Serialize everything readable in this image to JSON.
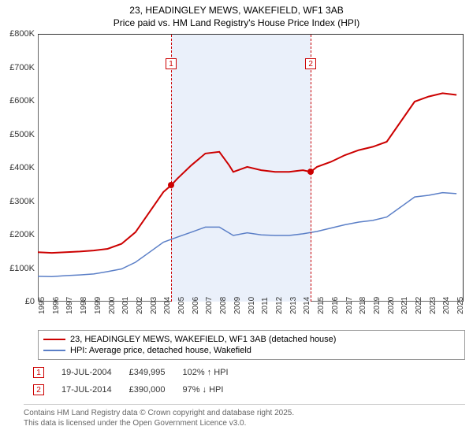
{
  "title_line1": "23, HEADINGLEY MEWS, WAKEFIELD, WF1 3AB",
  "title_line2": "Price paid vs. HM Land Registry's House Price Index (HPI)",
  "chart": {
    "type": "line",
    "x_years": [
      1995,
      1996,
      1997,
      1998,
      1999,
      2000,
      2001,
      2002,
      2003,
      2004,
      2005,
      2006,
      2007,
      2008,
      2009,
      2010,
      2011,
      2012,
      2013,
      2014,
      2015,
      2016,
      2017,
      2018,
      2019,
      2020,
      2021,
      2022,
      2023,
      2024,
      2025
    ],
    "xlim": [
      1995,
      2025.5
    ],
    "ylim": [
      0,
      800000
    ],
    "ytick_step": 100000,
    "ytick_labels": [
      "£0",
      "£100K",
      "£200K",
      "£300K",
      "£400K",
      "£500K",
      "£600K",
      "£700K",
      "£800K"
    ],
    "background_color": "#ffffff",
    "shaded_band": {
      "from": 2004.55,
      "to": 2014.55,
      "color": "#eaf0fa"
    },
    "grid_color": "#cccccc",
    "series": [
      {
        "name": "23, HEADINGLEY MEWS, WAKEFIELD, WF1 3AB (detached house)",
        "color": "#cc0000",
        "line_width": 2,
        "points": [
          [
            1995,
            150000
          ],
          [
            1996,
            148000
          ],
          [
            1997,
            150000
          ],
          [
            1998,
            152000
          ],
          [
            1999,
            155000
          ],
          [
            2000,
            160000
          ],
          [
            2001,
            175000
          ],
          [
            2002,
            210000
          ],
          [
            2003,
            270000
          ],
          [
            2004,
            330000
          ],
          [
            2004.55,
            350000
          ],
          [
            2005,
            370000
          ],
          [
            2006,
            410000
          ],
          [
            2007,
            445000
          ],
          [
            2008,
            450000
          ],
          [
            2008.7,
            410000
          ],
          [
            2009,
            390000
          ],
          [
            2010,
            405000
          ],
          [
            2011,
            395000
          ],
          [
            2012,
            390000
          ],
          [
            2013,
            390000
          ],
          [
            2014,
            395000
          ],
          [
            2014.55,
            390000
          ],
          [
            2015,
            405000
          ],
          [
            2016,
            420000
          ],
          [
            2017,
            440000
          ],
          [
            2018,
            455000
          ],
          [
            2019,
            465000
          ],
          [
            2020,
            480000
          ],
          [
            2021,
            540000
          ],
          [
            2022,
            600000
          ],
          [
            2023,
            615000
          ],
          [
            2024,
            625000
          ],
          [
            2025,
            620000
          ]
        ]
      },
      {
        "name": "HPI: Average price, detached house, Wakefield",
        "color": "#5b7fc7",
        "line_width": 1.5,
        "points": [
          [
            1995,
            78000
          ],
          [
            1996,
            77000
          ],
          [
            1997,
            80000
          ],
          [
            1998,
            82000
          ],
          [
            1999,
            85000
          ],
          [
            2000,
            92000
          ],
          [
            2001,
            100000
          ],
          [
            2002,
            120000
          ],
          [
            2003,
            150000
          ],
          [
            2004,
            180000
          ],
          [
            2005,
            195000
          ],
          [
            2006,
            210000
          ],
          [
            2007,
            225000
          ],
          [
            2008,
            225000
          ],
          [
            2009,
            200000
          ],
          [
            2010,
            208000
          ],
          [
            2011,
            202000
          ],
          [
            2012,
            200000
          ],
          [
            2013,
            200000
          ],
          [
            2014,
            205000
          ],
          [
            2015,
            212000
          ],
          [
            2016,
            222000
          ],
          [
            2017,
            232000
          ],
          [
            2018,
            240000
          ],
          [
            2019,
            245000
          ],
          [
            2020,
            255000
          ],
          [
            2021,
            285000
          ],
          [
            2022,
            315000
          ],
          [
            2023,
            320000
          ],
          [
            2024,
            328000
          ],
          [
            2025,
            325000
          ]
        ]
      }
    ],
    "sale_markers": [
      {
        "n": "1",
        "x": 2004.55,
        "y": 349995,
        "color": "#cc0000"
      },
      {
        "n": "2",
        "x": 2014.55,
        "y": 390000,
        "color": "#cc0000"
      }
    ]
  },
  "legend": {
    "items": [
      {
        "color": "#cc0000",
        "label": "23, HEADINGLEY MEWS, WAKEFIELD, WF1 3AB (detached house)"
      },
      {
        "color": "#5b7fc7",
        "label": "HPI: Average price, detached house, Wakefield"
      }
    ]
  },
  "sales": [
    {
      "n": "1",
      "date": "19-JUL-2004",
      "price": "£349,995",
      "vs_hpi": "102% ↑ HPI"
    },
    {
      "n": "2",
      "date": "17-JUL-2014",
      "price": "£390,000",
      "vs_hpi": "97% ↓ HPI"
    }
  ],
  "footer_line1": "Contains HM Land Registry data © Crown copyright and database right 2025.",
  "footer_line2": "This data is licensed under the Open Government Licence v3.0."
}
